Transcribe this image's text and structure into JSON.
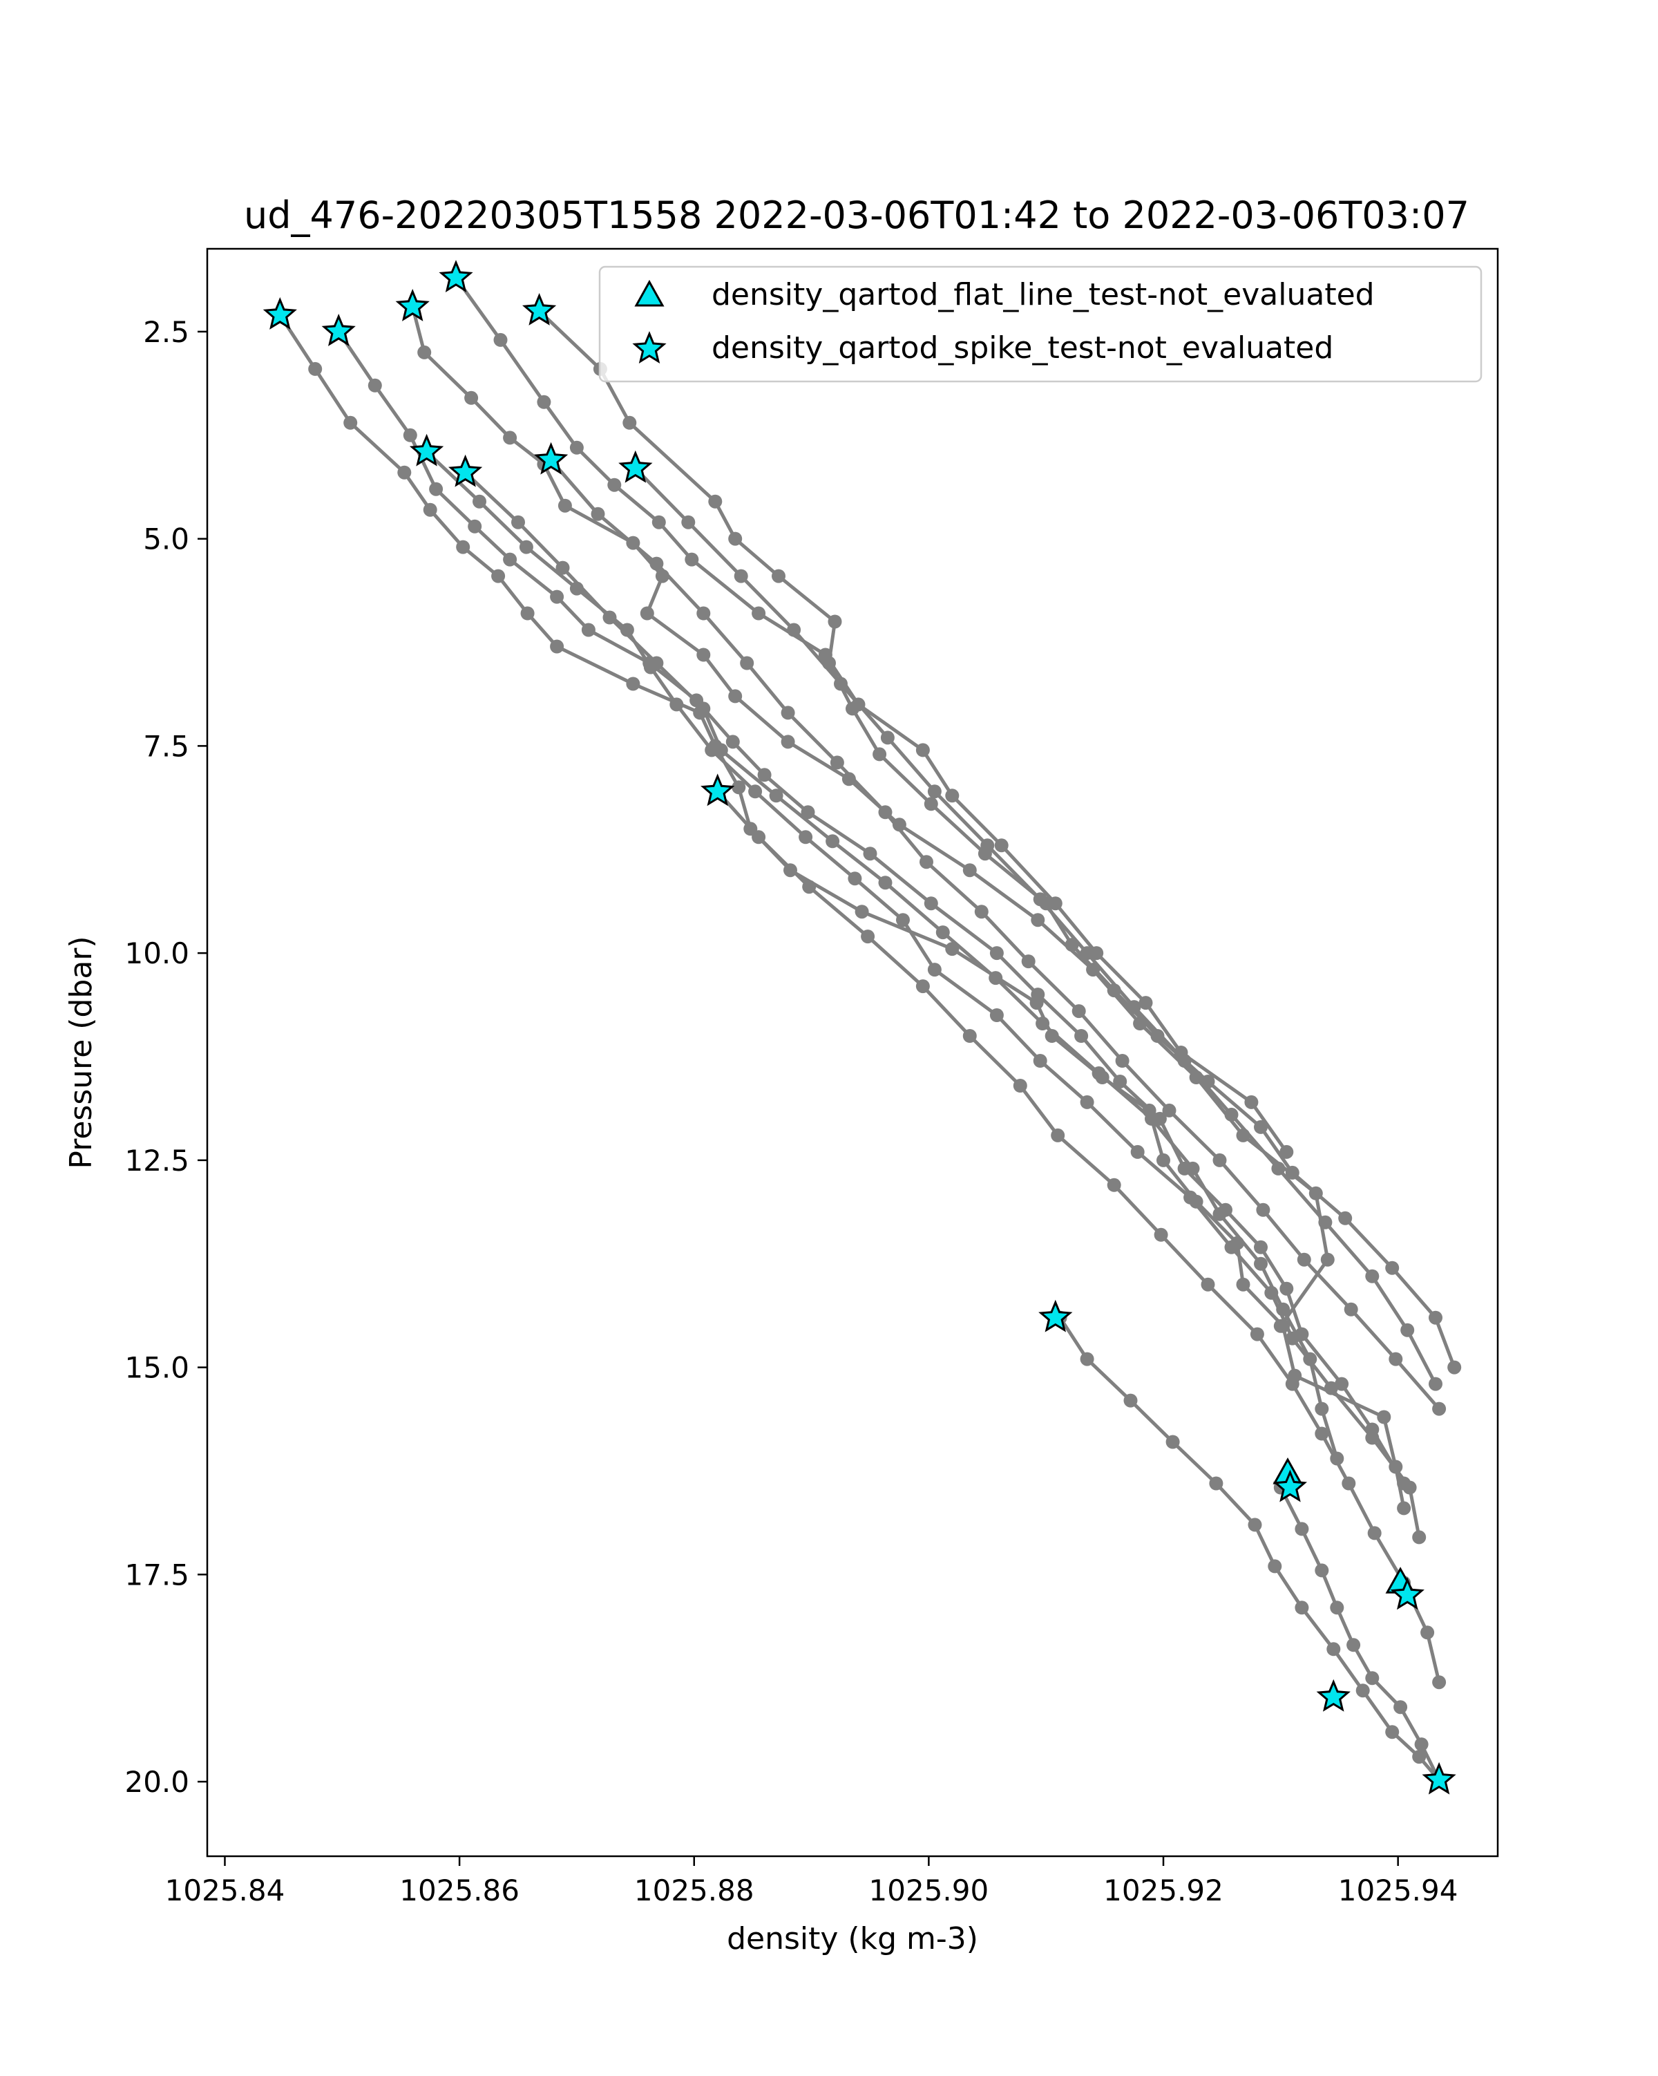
{
  "chart_data": {
    "type": "scatter",
    "title": "ud_476-20220305T1558 2022-03-06T01:42 to 2022-03-06T03:07",
    "xlabel": "density (kg m-3)",
    "ylabel": "Pressure (dbar)",
    "xlim": [
      1025.8385,
      1025.9485
    ],
    "ylim": [
      20.9,
      1.5
    ],
    "y_inverted": true,
    "grid": false,
    "legend_position": "upper-right",
    "x_ticks": [
      "1025.84",
      "1025.86",
      "1025.88",
      "1025.90",
      "1025.92",
      "1025.94"
    ],
    "y_ticks": [
      "2.5",
      "5.0",
      "7.5",
      "10.0",
      "12.5",
      "15.0",
      "17.5",
      "20.0"
    ],
    "profile_color": "#808080",
    "flag_color": "#00e5ee",
    "legend": [
      {
        "label": "density_qartod_flat_line_test-not_evaluated",
        "marker": "triangle"
      },
      {
        "label": "density_qartod_spike_test-not_evaluated",
        "marker": "star"
      }
    ],
    "profiles": [
      {
        "x": [
          1025.8447,
          1025.8477,
          1025.8507,
          1025.8553,
          1025.8575,
          1025.8603,
          1025.8633,
          1025.8658,
          1025.8683,
          1025.8748,
          1025.8805,
          1025.8818,
          1025.8838,
          1025.8848,
          1025.8882,
          1025.8943,
          1025.902,
          1025.9092,
          1025.9105,
          1025.9148,
          1025.9188,
          1025.92,
          1025.9228,
          1025.9263,
          1025.9268,
          1025.9302,
          1025.9312,
          1025.9388,
          1025.9398,
          1025.9405
        ],
        "y": [
          2.3,
          2.95,
          3.6,
          4.2,
          4.65,
          5.1,
          5.45,
          5.9,
          6.3,
          6.75,
          7.1,
          7.5,
          8.0,
          8.5,
          9.0,
          9.5,
          9.95,
          10.6,
          11.0,
          11.5,
          11.9,
          12.5,
          13.0,
          13.5,
          14.0,
          14.5,
          15.1,
          15.6,
          16.2,
          16.7
        ]
      },
      {
        "x": [
          1025.8497,
          1025.8528,
          1025.8558,
          1025.858,
          1025.8613,
          1025.8643,
          1025.8683,
          1025.871,
          1025.8762,
          1025.8802,
          1025.8833,
          1025.886,
          1025.8897,
          1025.895,
          1025.9002,
          1025.9058,
          1025.9093,
          1025.913,
          1025.9163,
          1025.9197,
          1025.9218,
          1025.9253,
          1025.9283,
          1025.9305,
          1025.9318,
          1025.9352,
          1025.9378,
          1025.9405
        ],
        "y": [
          2.5,
          3.15,
          3.75,
          4.4,
          4.85,
          5.25,
          5.7,
          6.1,
          6.5,
          6.95,
          7.45,
          7.85,
          8.3,
          8.8,
          9.4,
          10.0,
          10.5,
          11.0,
          11.55,
          12.0,
          12.6,
          13.1,
          13.55,
          14.05,
          14.6,
          15.2,
          15.75,
          16.4
        ]
      },
      {
        "x": [
          1025.856,
          1025.857,
          1025.861,
          1025.8643,
          1025.8672,
          1025.869,
          1025.8748,
          1025.8773,
          1025.876,
          1025.8808,
          1025.8835,
          1025.888,
          1025.8932,
          1025.8975,
          1025.9035,
          1025.9093,
          1025.914,
          1025.918,
          1025.9228,
          1025.9268,
          1025.933,
          1025.934,
          1025.93
        ],
        "y": [
          2.2,
          2.75,
          3.3,
          3.78,
          4.1,
          4.6,
          5.05,
          5.45,
          5.9,
          6.4,
          6.9,
          7.45,
          7.9,
          8.45,
          9.0,
          9.6,
          10.2,
          10.85,
          11.5,
          12.2,
          12.9,
          13.7,
          14.5
        ]
      },
      {
        "x": [
          1025.8597,
          1025.8635,
          1025.8672,
          1025.87,
          1025.8732,
          1025.877,
          1025.8798,
          1025.8855,
          1025.8912,
          1025.894,
          1025.8995,
          1025.902,
          1025.9062,
          1025.9108,
          1025.9143,
          1025.9185,
          1025.9215,
          1025.9275,
          1025.9305
        ],
        "y": [
          1.85,
          2.6,
          3.35,
          3.9,
          4.35,
          4.8,
          5.25,
          5.9,
          6.4,
          7.0,
          7.55,
          8.1,
          8.7,
          9.4,
          10.0,
          10.6,
          11.2,
          11.8,
          12.4
        ]
      },
      {
        "x": [
          1025.8668,
          1025.872,
          1025.8745,
          1025.8818,
          1025.8835,
          1025.8872,
          1025.892,
          1025.8915,
          1025.8935,
          1025.8958,
          1025.9002,
          1025.9048,
          1025.91,
          1025.9122,
          1025.9158,
          1025.9195,
          1025.9238,
          1025.9283,
          1025.931,
          1025.9355,
          1025.9395,
          1025.9432,
          1025.9448
        ],
        "y": [
          2.25,
          2.95,
          3.6,
          4.55,
          5.0,
          5.45,
          6.0,
          6.5,
          7.05,
          7.6,
          8.2,
          8.8,
          9.4,
          9.9,
          10.45,
          11.0,
          11.55,
          12.1,
          12.65,
          13.2,
          13.8,
          14.4,
          15.0
        ]
      },
      {
        "x": [
          1025.8572,
          1025.8617,
          1025.8657,
          1025.87,
          1025.8743,
          1025.8763,
          1025.8785,
          1025.8815,
          1025.8852,
          1025.8895,
          1025.8937,
          1025.8978,
          1025.9005,
          1025.9058,
          1025.9095,
          1025.9135,
          1025.9178,
          1025.9223,
          1025.9258,
          1025.9292,
          1025.931,
          1025.9343,
          1025.9378,
          1025.941,
          1025.9418
        ],
        "y": [
          3.95,
          4.55,
          5.1,
          5.6,
          6.1,
          6.55,
          7.0,
          7.55,
          8.05,
          8.6,
          9.1,
          9.6,
          10.2,
          10.75,
          11.3,
          11.8,
          12.4,
          12.95,
          13.55,
          14.1,
          14.65,
          15.25,
          15.85,
          16.45,
          17.05
        ]
      },
      {
        "x": [
          1025.8605,
          1025.865,
          1025.8688,
          1025.8728,
          1025.8768,
          1025.8808,
          1025.8823,
          1025.887,
          1025.8918,
          1025.8963,
          1025.9012,
          1025.9057,
          1025.9097,
          1025.9145,
          1025.919,
          1025.9225,
          1025.9248,
          1025.9283,
          1025.9302,
          1025.9325,
          1025.9335,
          1025.9348
        ],
        "y": [
          4.2,
          4.8,
          5.35,
          5.95,
          6.5,
          7.05,
          7.55,
          8.1,
          8.65,
          9.15,
          9.75,
          10.3,
          10.85,
          11.45,
          12.0,
          12.6,
          13.15,
          13.75,
          14.3,
          14.9,
          15.5,
          16.1
        ]
      },
      {
        "x": [
          1025.8678,
          1025.8718,
          1025.8768,
          1025.8808,
          1025.8845,
          1025.888,
          1025.8922,
          1025.8963,
          1025.8998,
          1025.9045,
          1025.9085,
          1025.9128,
          1025.9165,
          1025.9205,
          1025.9248,
          1025.9285,
          1025.932,
          1025.936,
          1025.9398,
          1025.9435
        ],
        "y": [
          4.05,
          4.7,
          5.3,
          5.9,
          6.5,
          7.1,
          7.7,
          8.3,
          8.9,
          9.5,
          10.1,
          10.7,
          11.3,
          11.9,
          12.5,
          13.1,
          13.7,
          14.3,
          14.9,
          15.5
        ]
      },
      {
        "x": [
          1025.875,
          1025.8795,
          1025.884,
          1025.8885,
          1025.8925,
          1025.8965,
          1025.9005,
          1025.905,
          1025.9095,
          1025.9135,
          1025.9175,
          1025.9218,
          1025.9258,
          1025.9298,
          1025.9338,
          1025.9378,
          1025.9408,
          1025.9432
        ],
        "y": [
          4.15,
          4.8,
          5.45,
          6.1,
          6.75,
          7.4,
          8.05,
          8.7,
          9.35,
          10.0,
          10.65,
          11.3,
          11.95,
          12.6,
          13.25,
          13.9,
          14.55,
          15.2
        ]
      },
      {
        "x": [
          1025.882,
          1025.8855,
          1025.8898,
          1025.8948,
          1025.8995,
          1025.9035,
          1025.9078,
          1025.911,
          1025.9158,
          1025.9198,
          1025.9238,
          1025.928,
          1025.931,
          1025.9335,
          1025.9358,
          1025.938,
          1025.9405,
          1025.9425,
          1025.9435
        ],
        "y": [
          8.05,
          8.6,
          9.2,
          9.8,
          10.4,
          11.0,
          11.6,
          12.2,
          12.8,
          13.4,
          14.0,
          14.6,
          15.2,
          15.8,
          16.4,
          17.0,
          17.6,
          18.2,
          18.8
        ]
      },
      {
        "x": [
          1025.9112,
          1025.9135,
          1025.9172,
          1025.9208,
          1025.9245,
          1025.9278,
          1025.9295,
          1025.9318,
          1025.9345,
          1025.937,
          1025.9395,
          1025.9418,
          1025.9435
        ],
        "y": [
          14.4,
          14.9,
          15.4,
          15.9,
          16.4,
          16.9,
          17.4,
          17.9,
          18.4,
          18.9,
          19.4,
          19.7,
          19.98
        ]
      },
      {
        "x": [
          1025.93,
          1025.9318,
          1025.9335,
          1025.9348,
          1025.9362,
          1025.9378,
          1025.9402,
          1025.942,
          1025.9435
        ],
        "y": [
          16.45,
          16.95,
          17.45,
          17.9,
          18.35,
          18.75,
          19.1,
          19.55,
          19.98
        ]
      }
    ],
    "flagged_points": {
      "flat_line": {
        "x": [
          1025.9306,
          1025.9402
        ],
        "y": [
          16.28,
          17.6
        ]
      },
      "spike": {
        "x": [
          1025.8447,
          1025.8497,
          1025.856,
          1025.8597,
          1025.8668,
          1025.8572,
          1025.8605,
          1025.8678,
          1025.875,
          1025.882,
          1025.9108,
          1025.9308,
          1025.9408,
          1025.9345,
          1025.9435
        ],
        "y": [
          2.3,
          2.5,
          2.2,
          1.85,
          2.25,
          3.95,
          4.2,
          4.05,
          4.15,
          8.05,
          14.4,
          16.45,
          17.75,
          18.98,
          19.98
        ]
      }
    }
  }
}
